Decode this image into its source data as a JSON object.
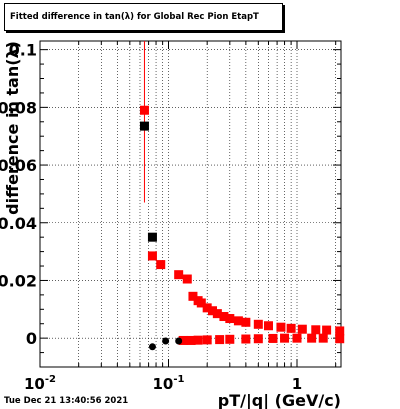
{
  "chart_data": {
    "type": "scatter",
    "title": "Fitted difference in tan(λ) for Global Rec Pion EtapT",
    "xlabel": "pT/|q| (GeV/c)",
    "ylabel": "difference in tan(λ)",
    "xscale": "log",
    "xlim": [
      0.01,
      2.2
    ],
    "ylim": [
      -0.01,
      0.103
    ],
    "grid": true,
    "x_ticks": [
      {
        "value": 0.01,
        "base": "10",
        "exp": "-2"
      },
      {
        "value": 0.1,
        "base": "10",
        "exp": "-1"
      },
      {
        "value": 1,
        "base": "1",
        "exp": ""
      }
    ],
    "y_ticks": [
      {
        "value": 0,
        "label": "0"
      },
      {
        "value": 0.02,
        "label": "0.02"
      },
      {
        "value": 0.04,
        "label": "0.04"
      },
      {
        "value": 0.06,
        "label": "0.06"
      },
      {
        "value": 0.08,
        "label": "0.08"
      },
      {
        "value": 0.1,
        "label": "0.1"
      }
    ],
    "series": [
      {
        "color": "#ff0000",
        "marker": "square",
        "points": [
          {
            "x": 0.065,
            "y": 0.079,
            "yerr_lo": 0.047,
            "yerr_hi": 0.103
          },
          {
            "x": 0.075,
            "y": 0.0285
          },
          {
            "x": 0.087,
            "y": 0.0255
          },
          {
            "x": 0.12,
            "y": 0.022
          },
          {
            "x": 0.14,
            "y": 0.0205
          },
          {
            "x": 0.155,
            "y": 0.0145
          },
          {
            "x": 0.17,
            "y": 0.013
          },
          {
            "x": 0.18,
            "y": 0.0122
          },
          {
            "x": 0.2,
            "y": 0.0105
          },
          {
            "x": 0.22,
            "y": 0.0095
          },
          {
            "x": 0.24,
            "y": 0.0085
          },
          {
            "x": 0.27,
            "y": 0.0075
          },
          {
            "x": 0.3,
            "y": 0.0068
          },
          {
            "x": 0.35,
            "y": 0.006
          },
          {
            "x": 0.4,
            "y": 0.0055
          },
          {
            "x": 0.5,
            "y": 0.0048
          },
          {
            "x": 0.6,
            "y": 0.0043
          },
          {
            "x": 0.75,
            "y": 0.0038
          },
          {
            "x": 0.9,
            "y": 0.0034
          },
          {
            "x": 1.1,
            "y": 0.0031
          },
          {
            "x": 1.4,
            "y": 0.0029
          },
          {
            "x": 1.7,
            "y": 0.0028
          },
          {
            "x": 2.15,
            "y": 0.0025
          },
          {
            "x": 0.13,
            "y": -0.0008
          },
          {
            "x": 0.15,
            "y": -0.0008
          },
          {
            "x": 0.17,
            "y": -0.0007
          },
          {
            "x": 0.2,
            "y": -0.0006
          },
          {
            "x": 0.25,
            "y": -0.0005
          },
          {
            "x": 0.3,
            "y": -0.0004
          },
          {
            "x": 0.4,
            "y": -0.0003
          },
          {
            "x": 0.5,
            "y": -0.0002
          },
          {
            "x": 0.65,
            "y": -0.0001
          },
          {
            "x": 0.8,
            "y": 0.0
          },
          {
            "x": 1.0,
            "y": 0.0
          },
          {
            "x": 1.3,
            "y": 0.0
          },
          {
            "x": 1.6,
            "y": 0.0
          },
          {
            "x": 2.15,
            "y": -0.0002
          }
        ]
      },
      {
        "color": "#000000",
        "marker": "square",
        "points": [
          {
            "x": 0.065,
            "y": 0.0735
          },
          {
            "x": 0.075,
            "y": 0.035
          }
        ]
      },
      {
        "color": "#000000",
        "marker": "circle",
        "points": [
          {
            "x": 0.075,
            "y": -0.003
          },
          {
            "x": 0.095,
            "y": -0.001
          },
          {
            "x": 0.12,
            "y": -0.001
          }
        ]
      }
    ]
  },
  "footer": {
    "timestamp": "Tue Dec 21 13:40:56 2021"
  }
}
